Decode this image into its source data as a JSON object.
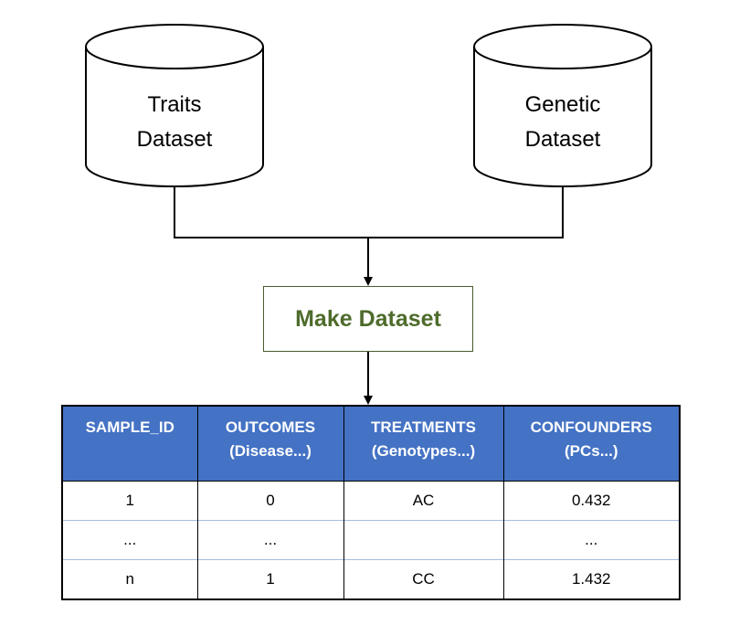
{
  "nodes": {
    "traits_dataset": {
      "line1": "Traits",
      "line2": "Dataset"
    },
    "genetic_dataset": {
      "line1": "Genetic",
      "line2": "Dataset"
    },
    "make_dataset": {
      "label": "Make Dataset"
    }
  },
  "table": {
    "columns": [
      {
        "line1": "SAMPLE_ID",
        "line2": ""
      },
      {
        "line1": "OUTCOMES",
        "line2": "(Disease...)"
      },
      {
        "line1": "TREATMENTS",
        "line2": "(Genotypes...)"
      },
      {
        "line1": "CONFOUNDERS",
        "line2": "(PCs...)"
      }
    ],
    "rows": [
      [
        "1",
        "0",
        "AC",
        "0.432"
      ],
      [
        "...",
        "...",
        "",
        "..."
      ],
      [
        "n",
        "1",
        "CC",
        "1.432"
      ]
    ]
  },
  "colors": {
    "header_fill": "#4472c4",
    "make_dataset_text": "#4e6b2b",
    "make_dataset_border": "#4a5a2e",
    "row_divider": "#a6bbe3"
  }
}
